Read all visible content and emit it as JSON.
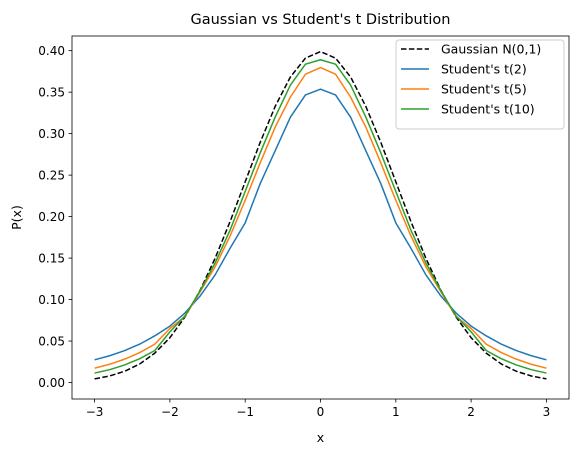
{
  "chart_data": {
    "type": "line",
    "title": "Gaussian vs Student's t Distribution",
    "xlabel": "x",
    "ylabel": "P(x)",
    "xlim": [
      -3.3,
      3.3
    ],
    "ylim": [
      -0.01985,
      0.41769
    ],
    "xticks": [
      -3,
      -2,
      -1,
      0,
      1,
      2,
      3
    ],
    "xtick_labels": [
      "−3",
      "−2",
      "−1",
      "0",
      "1",
      "2",
      "3"
    ],
    "yticks": [
      0.0,
      0.05,
      0.1,
      0.15,
      0.2,
      0.25,
      0.3,
      0.35,
      0.4
    ],
    "ytick_labels": [
      "0.00",
      "0.05",
      "0.10",
      "0.15",
      "0.20",
      "0.25",
      "0.30",
      "0.35",
      "0.40"
    ],
    "grid": false,
    "legend_position": "top-right",
    "x": [
      -3.0,
      -2.8,
      -2.6,
      -2.4,
      -2.2,
      -2.0,
      -1.8,
      -1.6,
      -1.4,
      -1.2,
      -1.0,
      -0.8,
      -0.6,
      -0.4,
      -0.2,
      0.0,
      0.2,
      0.4,
      0.6,
      0.8,
      1.0,
      1.2,
      1.4,
      1.6,
      1.8,
      2.0,
      2.2,
      2.4,
      2.6,
      2.8,
      3.0
    ],
    "series": [
      {
        "name": "Gaussian N(0,1)",
        "color": "#000000",
        "style": "dashed",
        "values": [
          0.0044,
          0.0079,
          0.0136,
          0.0224,
          0.0355,
          0.054,
          0.079,
          0.1109,
          0.1497,
          0.1942,
          0.242,
          0.2897,
          0.3332,
          0.3683,
          0.391,
          0.3989,
          0.391,
          0.3683,
          0.3332,
          0.2897,
          0.242,
          0.1942,
          0.1497,
          0.1109,
          0.079,
          0.054,
          0.0355,
          0.0224,
          0.0136,
          0.0079,
          0.0044
        ]
      },
      {
        "name": "Student's t(2)",
        "color": "#1f77b4",
        "style": "solid",
        "values": [
          0.0274,
          0.0323,
          0.0385,
          0.0463,
          0.0563,
          0.068,
          0.0838,
          0.1041,
          0.1297,
          0.162,
          0.1925,
          0.24,
          0.2797,
          0.3198,
          0.3467,
          0.3536,
          0.3467,
          0.3198,
          0.2797,
          0.24,
          0.1925,
          0.162,
          0.1297,
          0.1041,
          0.0838,
          0.068,
          0.0563,
          0.0463,
          0.0385,
          0.0323,
          0.0274
        ]
      },
      {
        "name": "Student's t(5)",
        "color": "#ff7f0e",
        "style": "solid",
        "values": [
          0.0173,
          0.022,
          0.0282,
          0.0361,
          0.0463,
          0.0651,
          0.0796,
          0.1091,
          0.1394,
          0.1769,
          0.2197,
          0.265,
          0.3082,
          0.344,
          0.3716,
          0.3796,
          0.3716,
          0.344,
          0.3082,
          0.265,
          0.2197,
          0.1769,
          0.1394,
          0.1091,
          0.0796,
          0.0651,
          0.0463,
          0.0361,
          0.0282,
          0.022,
          0.0173
        ]
      },
      {
        "name": "Student's t(10)",
        "color": "#2ca02c",
        "style": "solid",
        "values": [
          0.0114,
          0.0155,
          0.0212,
          0.0287,
          0.0386,
          0.0611,
          0.0802,
          0.1105,
          0.1441,
          0.1838,
          0.2304,
          0.277,
          0.3203,
          0.3585,
          0.3837,
          0.3891,
          0.3837,
          0.3585,
          0.3203,
          0.277,
          0.2304,
          0.1838,
          0.1441,
          0.1105,
          0.0802,
          0.0611,
          0.0386,
          0.0287,
          0.0212,
          0.0155,
          0.0114
        ]
      }
    ]
  }
}
